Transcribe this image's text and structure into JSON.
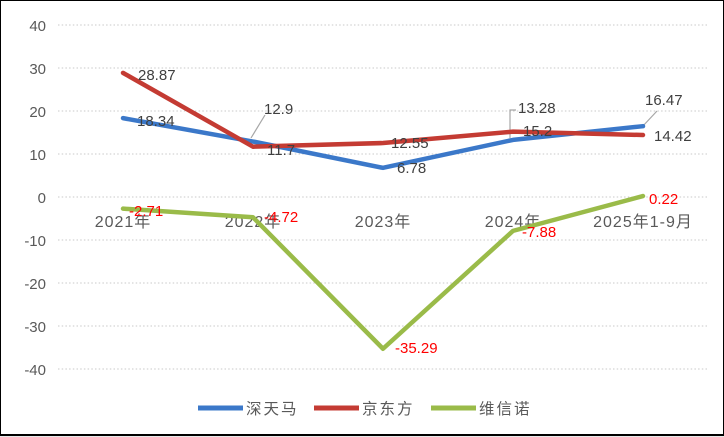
{
  "window": {
    "background": "#FFFFFF",
    "border_color": "#000000"
  },
  "chart_data": {
    "type": "line",
    "title": "",
    "categories": [
      "2021年",
      "2022年",
      "2023年",
      "2024年",
      "2025年1-9月"
    ],
    "series": [
      {
        "key": "tianma",
        "name": "深天马",
        "color": "#3B78C9",
        "label_color": "#3F3F3F",
        "values": [
          18.34,
          12.9,
          6.78,
          13.28,
          16.47
        ],
        "labels": [
          "18.34",
          "12.9",
          "6.78",
          "13.28",
          "16.47"
        ]
      },
      {
        "key": "boe",
        "name": "京东方",
        "color": "#C43B33",
        "label_color": "#3F3F3F",
        "values": [
          28.87,
          11.7,
          12.55,
          15.2,
          14.42
        ],
        "labels": [
          "28.87",
          "11.7",
          "12.55",
          "15.2",
          "14.42"
        ]
      },
      {
        "key": "visionox",
        "name": "维信诺",
        "color": "#9ABB49",
        "label_color": "#FF0000",
        "values": [
          -2.71,
          -4.72,
          -35.29,
          -7.88,
          0.22
        ],
        "labels": [
          "-2.71",
          "-4.72",
          "-35.29",
          "-7.88",
          "0.22"
        ]
      }
    ],
    "ylim": [
      -40,
      40
    ],
    "ytick_step": 10,
    "yticks": [
      "40",
      "30",
      "20",
      "10",
      "0",
      "-10",
      "-20",
      "-30",
      "-40"
    ],
    "grid": "horizontal-dotted",
    "gridline_color": "#C9C9C9",
    "axis_label_color": "#595959",
    "leader_color": "#A6A6A6",
    "legend_position": "bottom"
  }
}
